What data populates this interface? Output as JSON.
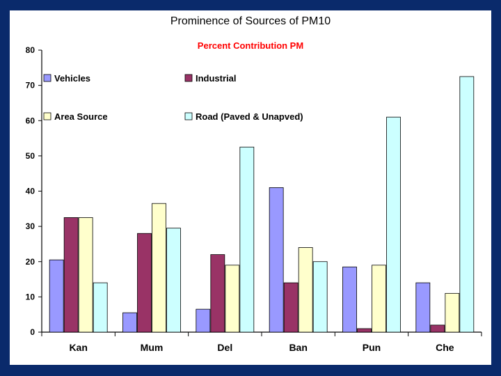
{
  "page_title": "Prominence of Sources of PM10",
  "chart_data": {
    "type": "bar",
    "title": "Percent Contribution PM",
    "categories": [
      "Kan",
      "Mum",
      "Del",
      "Ban",
      "Pun",
      "Che"
    ],
    "series": [
      {
        "name": "Vehicles",
        "color": "#9999ff",
        "values": [
          20.5,
          5.5,
          6.5,
          41,
          18.5,
          14
        ]
      },
      {
        "name": "Industrial",
        "color": "#993366",
        "values": [
          32.5,
          28,
          22,
          14,
          1,
          2
        ]
      },
      {
        "name": "Area Source",
        "color": "#ffffcc",
        "values": [
          32.5,
          36.5,
          19,
          24,
          19,
          11
        ]
      },
      {
        "name": "Road (Paved & Unapved)",
        "color": "#ccffff",
        "values": [
          14,
          29.5,
          52.5,
          20,
          61,
          72.5
        ]
      }
    ],
    "ylim": [
      0,
      80
    ],
    "yticks": [
      "0",
      "10",
      "20",
      "30",
      "40",
      "50",
      "60",
      "70",
      "80"
    ],
    "xlabel": "",
    "ylabel": "",
    "legend_position": "top-left",
    "grid": false,
    "subtitle_color": "#ff0000"
  }
}
